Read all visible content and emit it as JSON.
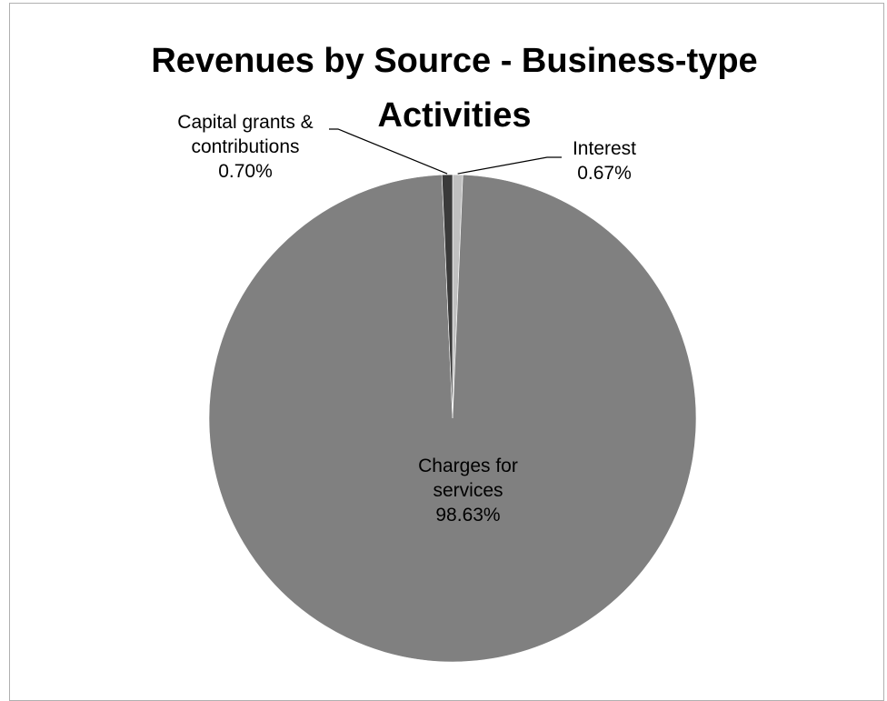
{
  "chart_data": {
    "type": "pie",
    "title": "Revenues by Source - Business-type Activities",
    "slices": [
      {
        "name": "Charges for services",
        "label_lines": [
          "Charges for",
          "services"
        ],
        "value": 98.63,
        "value_label": "98.63%",
        "color": "#808080"
      },
      {
        "name": "Capital grants & contributions",
        "label_lines": [
          "Capital grants &",
          "contributions"
        ],
        "value": 0.7,
        "value_label": "0.70%",
        "color": "#3a3a3a"
      },
      {
        "name": "Interest",
        "label_lines": [
          "Interest"
        ],
        "value": 0.67,
        "value_label": "0.67%",
        "color": "#c0c0c0"
      }
    ],
    "legend": "none",
    "start_angle_deg": 0,
    "direction": "counterclockwise"
  }
}
